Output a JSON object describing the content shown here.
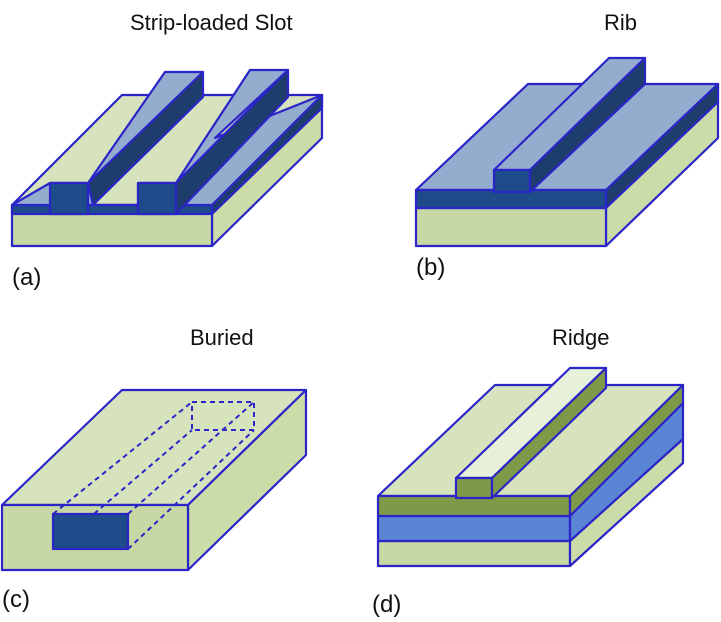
{
  "panels": {
    "a": {
      "title": "Strip-loaded Slot",
      "label": "(a)"
    },
    "b": {
      "title": "Rib",
      "label": "(b)"
    },
    "c": {
      "title": "Buried",
      "label": "(c)"
    },
    "d": {
      "title": "Ridge",
      "label": "(d)"
    }
  },
  "colors": {
    "edge": "#2b25c8",
    "substrate_front": "#c7d8a4",
    "substrate_top": "#d6e3bd",
    "substrate_side": "#cbdca8",
    "guide_top": "#94adcf",
    "guide_front": "#1e4b8a",
    "guide_side": "#1f3d6c",
    "buried_core": "#1e4b8a",
    "ridge_core_top": "#e7f1da",
    "ridge_cladding": "#7e9a48",
    "ridge_blue_layer": "#5a85d4"
  }
}
